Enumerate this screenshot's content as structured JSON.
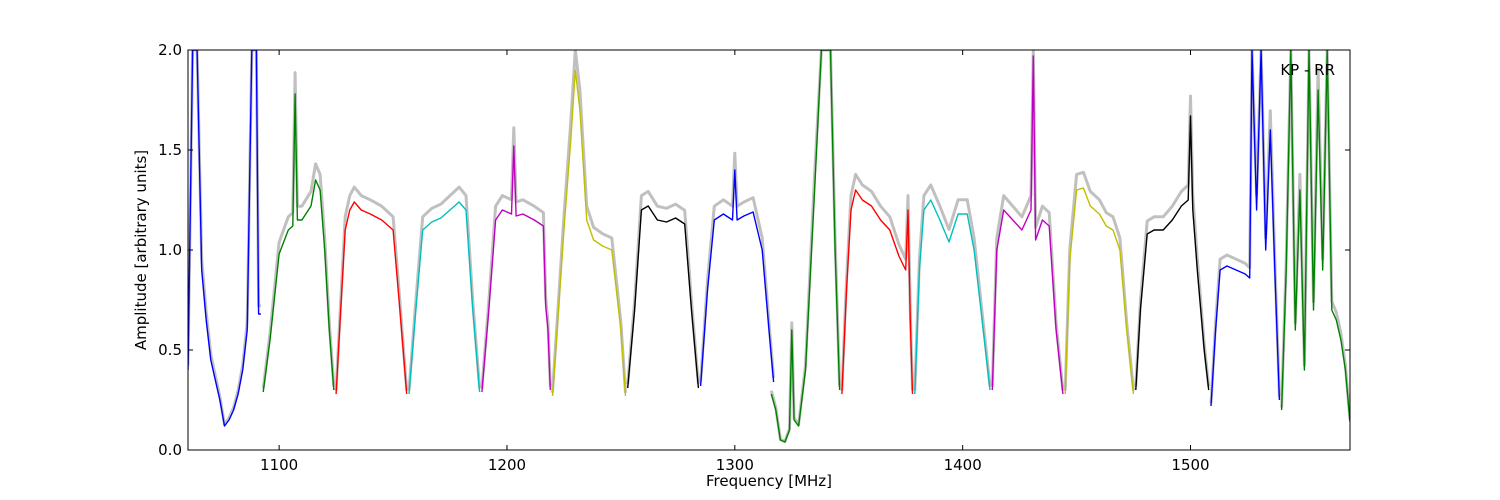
{
  "chart_data": {
    "type": "line",
    "title": "",
    "xlabel": "Frequency [MHz]",
    "ylabel": "Amplitude [arbitrary units]",
    "xlim": [
      1060,
      1570
    ],
    "ylim": [
      0.0,
      2.0
    ],
    "xticks": [
      1100,
      1200,
      1300,
      1400,
      1500
    ],
    "xtick_labels": [
      "1100",
      "1200",
      "1300",
      "1400",
      "1500"
    ],
    "yticks": [
      0.0,
      0.5,
      1.0,
      1.5,
      2.0
    ],
    "ytick_labels": [
      "0.0",
      "0.5",
      "1.0",
      "1.5",
      "2.0"
    ],
    "annotation": "KP - RR",
    "grid": false,
    "background_color": "#c0c0c0",
    "series": [
      {
        "color": "#0000ff",
        "x": [
          1060,
          1062,
          1064,
          1066,
          1068,
          1070,
          1072,
          1074,
          1076,
          1078,
          1080,
          1082,
          1084,
          1086,
          1088,
          1090,
          1091,
          1092
        ],
        "y": [
          0.4,
          2.0,
          2.0,
          0.9,
          0.65,
          0.45,
          0.35,
          0.25,
          0.12,
          0.15,
          0.2,
          0.28,
          0.4,
          0.6,
          2.0,
          2.0,
          0.68,
          0.68
        ]
      },
      {
        "color": "#008000",
        "x": [
          1093,
          1096,
          1100,
          1104,
          1106,
          1107,
          1108,
          1110,
          1114,
          1116,
          1118,
          1120,
          1122,
          1124
        ],
        "y": [
          0.29,
          0.55,
          0.98,
          1.1,
          1.12,
          1.78,
          1.15,
          1.15,
          1.22,
          1.35,
          1.3,
          1.0,
          0.6,
          0.3
        ]
      },
      {
        "color": "#ff0000",
        "x": [
          1125,
          1127,
          1129,
          1131,
          1133,
          1136,
          1140,
          1145,
          1150,
          1153,
          1156
        ],
        "y": [
          0.28,
          0.7,
          1.1,
          1.2,
          1.24,
          1.2,
          1.18,
          1.15,
          1.1,
          0.7,
          0.28
        ]
      },
      {
        "color": "#00bfbf",
        "x": [
          1157,
          1160,
          1163,
          1167,
          1171,
          1175,
          1179,
          1182,
          1185,
          1188
        ],
        "y": [
          0.28,
          0.7,
          1.1,
          1.14,
          1.16,
          1.2,
          1.24,
          1.2,
          0.7,
          0.29
        ]
      },
      {
        "color": "#bf00bf",
        "x": [
          1189,
          1192,
          1195,
          1198,
          1202,
          1203,
          1204,
          1207,
          1212,
          1216,
          1217,
          1218,
          1219
        ],
        "y": [
          0.29,
          0.7,
          1.15,
          1.2,
          1.18,
          1.52,
          1.17,
          1.18,
          1.15,
          1.12,
          0.72,
          0.6,
          0.3
        ]
      },
      {
        "color": "#bfbf00",
        "x": [
          1220,
          1222,
          1225,
          1228,
          1230,
          1232,
          1235,
          1238,
          1242,
          1246,
          1250,
          1252
        ],
        "y": [
          0.27,
          0.6,
          1.1,
          1.55,
          1.9,
          1.7,
          1.15,
          1.05,
          1.02,
          1.0,
          0.6,
          0.27
        ]
      },
      {
        "color": "#000000",
        "x": [
          1253,
          1256,
          1259,
          1262,
          1266,
          1270,
          1274,
          1278,
          1281,
          1284
        ],
        "y": [
          0.31,
          0.7,
          1.2,
          1.22,
          1.15,
          1.14,
          1.16,
          1.13,
          0.7,
          0.31
        ]
      },
      {
        "color": "#0000ff",
        "x": [
          1285,
          1288,
          1291,
          1295,
          1299,
          1300,
          1301,
          1304,
          1308,
          1312,
          1315,
          1317
        ],
        "y": [
          0.32,
          0.8,
          1.15,
          1.18,
          1.15,
          1.4,
          1.15,
          1.17,
          1.19,
          1.0,
          0.6,
          0.34
        ]
      },
      {
        "color": "#008000",
        "x": [
          1316,
          1318,
          1320,
          1322,
          1324,
          1325,
          1326,
          1328,
          1331,
          1335,
          1338,
          1342,
          1344,
          1346
        ],
        "y": [
          0.28,
          0.2,
          0.05,
          0.04,
          0.1,
          0.6,
          0.15,
          0.12,
          0.4,
          1.3,
          2.0,
          2.0,
          1.0,
          0.3
        ]
      },
      {
        "color": "#ff0000",
        "x": [
          1347,
          1349,
          1351,
          1353,
          1356,
          1360,
          1364,
          1368,
          1372,
          1375,
          1376,
          1377,
          1378
        ],
        "y": [
          0.28,
          0.8,
          1.2,
          1.3,
          1.25,
          1.22,
          1.15,
          1.1,
          0.97,
          0.9,
          1.2,
          0.65,
          0.28
        ]
      },
      {
        "color": "#00bfbf",
        "x": [
          1379,
          1381,
          1383,
          1386,
          1390,
          1394,
          1398,
          1402,
          1405,
          1410,
          1412
        ],
        "y": [
          0.28,
          0.9,
          1.2,
          1.25,
          1.15,
          1.04,
          1.18,
          1.18,
          1.0,
          0.5,
          0.3
        ]
      },
      {
        "color": "#bf00bf",
        "x": [
          1413,
          1415,
          1418,
          1422,
          1426,
          1430,
          1431,
          1432,
          1435,
          1438,
          1441,
          1444
        ],
        "y": [
          0.3,
          1.0,
          1.2,
          1.15,
          1.1,
          1.2,
          1.97,
          1.05,
          1.15,
          1.12,
          0.6,
          0.28
        ]
      },
      {
        "color": "#bfbf00",
        "x": [
          1445,
          1447,
          1450,
          1453,
          1456,
          1460,
          1463,
          1466,
          1469,
          1472,
          1475
        ],
        "y": [
          0.28,
          0.95,
          1.3,
          1.31,
          1.22,
          1.18,
          1.12,
          1.1,
          1.0,
          0.6,
          0.28
        ]
      },
      {
        "color": "#000000",
        "x": [
          1476,
          1478,
          1481,
          1484,
          1488,
          1492,
          1496,
          1499,
          1500,
          1501,
          1503,
          1506,
          1508
        ],
        "y": [
          0.3,
          0.7,
          1.08,
          1.1,
          1.1,
          1.15,
          1.22,
          1.25,
          1.67,
          1.2,
          0.9,
          0.5,
          0.3
        ]
      },
      {
        "color": "#0000ff",
        "x": [
          1509,
          1511,
          1513,
          1516,
          1520,
          1524,
          1526,
          1527,
          1529,
          1531,
          1533,
          1535,
          1537,
          1539
        ],
        "y": [
          0.22,
          0.6,
          0.9,
          0.92,
          0.9,
          0.88,
          0.86,
          2.0,
          1.2,
          2.0,
          1.0,
          1.6,
          0.9,
          0.25
        ]
      },
      {
        "color": "#008000",
        "x": [
          1540,
          1542,
          1544,
          1546,
          1548,
          1550,
          1552,
          1554,
          1556,
          1558,
          1560,
          1562,
          1564,
          1566,
          1568,
          1570
        ],
        "y": [
          0.2,
          0.9,
          2.0,
          0.6,
          1.3,
          0.4,
          2.0,
          0.7,
          1.8,
          0.9,
          2.0,
          0.7,
          0.65,
          0.55,
          0.4,
          0.14
        ]
      }
    ]
  }
}
